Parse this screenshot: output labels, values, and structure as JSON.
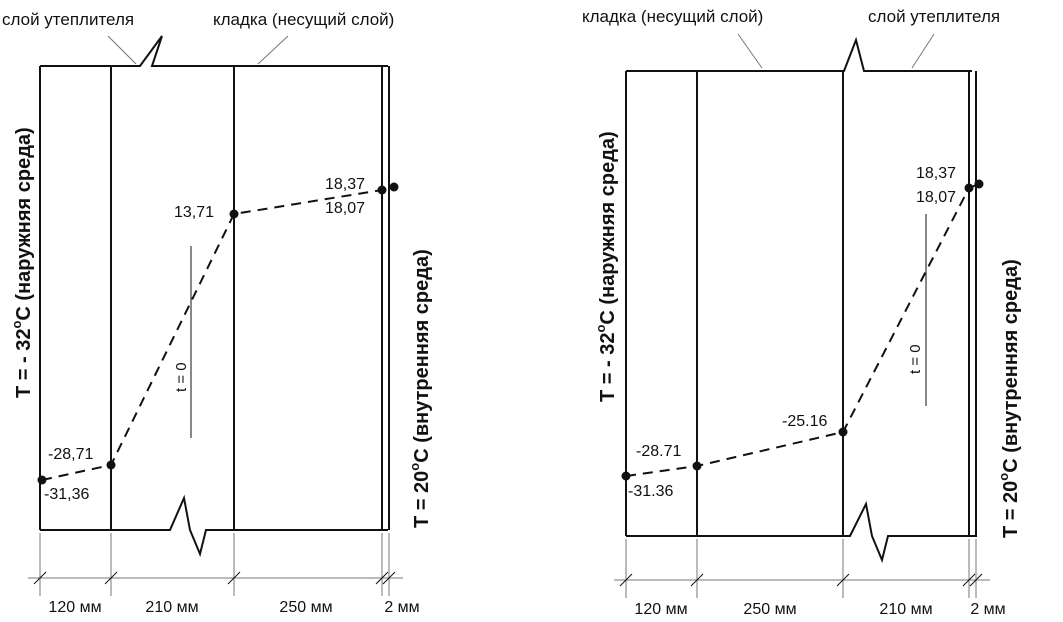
{
  "left": {
    "label_insulation": "слой утеплителя",
    "label_masonry": "кладка (несущий слой)",
    "side_left": {
      "main": "T = - 32",
      "sup": "o",
      "rest": "C (наружняя среда)"
    },
    "side_right": {
      "main": "T =    20",
      "sup": "o",
      "rest": "C (внутренняя среда)"
    },
    "temps": [
      "-31,36",
      "-28,71",
      "13,71",
      "18,37",
      "18,07"
    ],
    "t_zero": "t = 0",
    "dims": [
      "120 мм",
      "210 мм",
      "250 мм",
      "2 мм"
    ]
  },
  "right": {
    "label_masonry": "кладка (несущий слой)",
    "label_insulation": "слой утеплителя",
    "side_left": {
      "main": "T = - 32",
      "sup": "o",
      "rest": "C (наружняя среда)"
    },
    "side_right": {
      "main": "T =    20",
      "sup": "o",
      "rest": "C (внутренняя среда)"
    },
    "temps": [
      "-31.36",
      "-28.71",
      "-25.16",
      "18,37",
      "18,07"
    ],
    "t_zero": "t = 0",
    "dims": [
      "120 мм",
      "250 мм",
      "210 мм",
      "2 мм"
    ]
  }
}
